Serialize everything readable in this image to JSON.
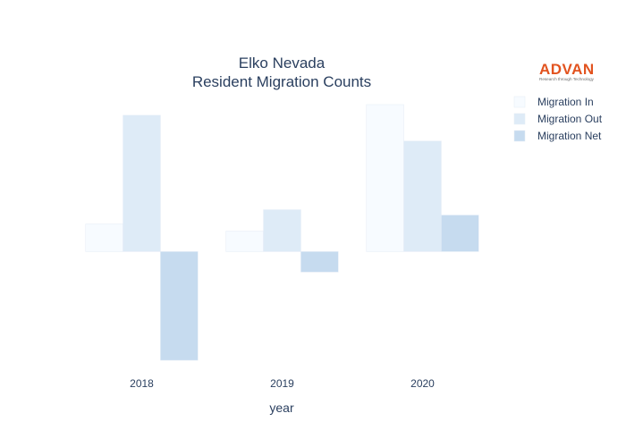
{
  "chart_data": {
    "type": "bar",
    "title_line1": "Elko Nevada",
    "title_line2": "Resident Migration Counts",
    "xlabel": "year",
    "ylabel": "",
    "categories": [
      "2018",
      "2019",
      "2020"
    ],
    "series": [
      {
        "name": "Migration In",
        "values": [
          31,
          23,
          165
        ],
        "color": "#f7fbff"
      },
      {
        "name": "Migration Out",
        "values": [
          153,
          47,
          124
        ],
        "color": "#deebf7"
      },
      {
        "name": "Migration Net",
        "values": [
          -122,
          -23,
          41
        ],
        "color": "#c6dbef"
      }
    ],
    "ylim": [
      -124,
      167
    ],
    "grid": false,
    "legend_position": "top-right"
  },
  "logo": {
    "name": "ADVAN",
    "tagline": "Research through Technology"
  }
}
